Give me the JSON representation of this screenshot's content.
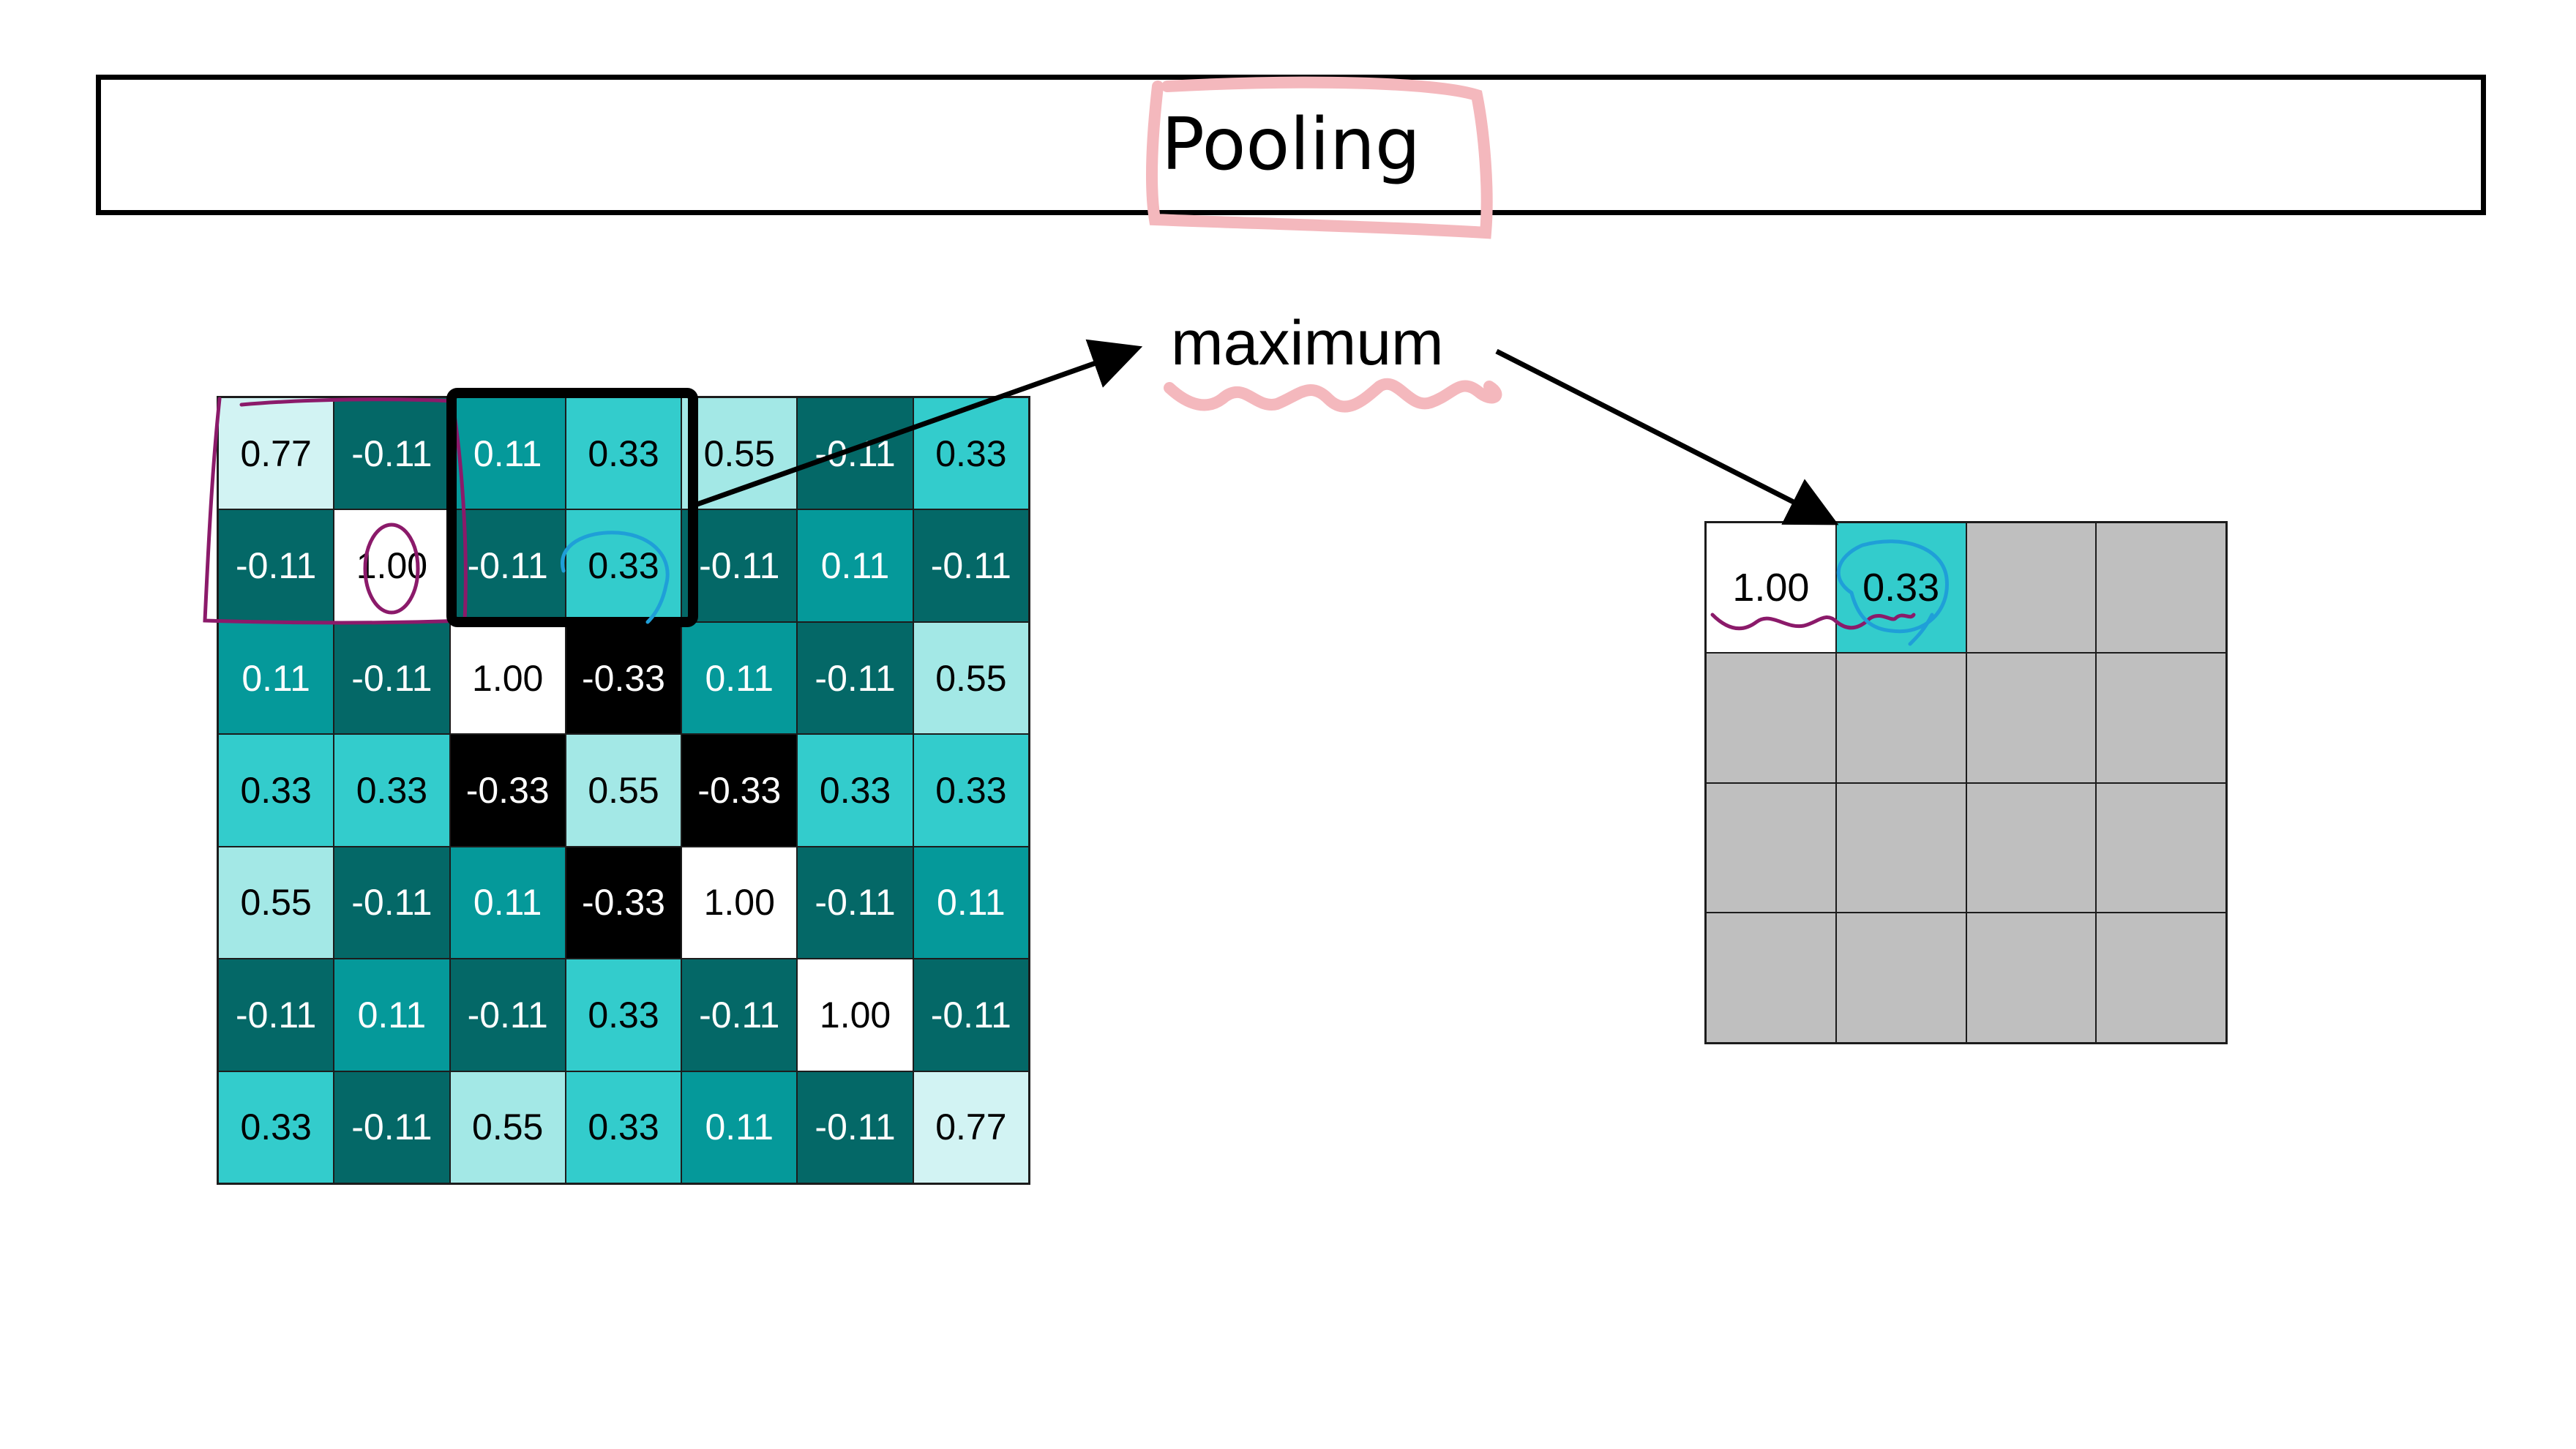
{
  "title": "Pooling",
  "operation_label": "maximum",
  "input_grid": [
    [
      "0.77",
      "-0.11",
      "0.11",
      "0.33",
      "0.55",
      "-0.11",
      "0.33"
    ],
    [
      "-0.11",
      "1.00",
      "-0.11",
      "0.33",
      "-0.11",
      "0.11",
      "-0.11"
    ],
    [
      "0.11",
      "-0.11",
      "1.00",
      "-0.33",
      "0.11",
      "-0.11",
      "0.55"
    ],
    [
      "0.33",
      "0.33",
      "-0.33",
      "0.55",
      "-0.33",
      "0.33",
      "0.33"
    ],
    [
      "0.55",
      "-0.11",
      "0.11",
      "-0.33",
      "1.00",
      "-0.11",
      "0.11"
    ],
    [
      "-0.11",
      "0.11",
      "-0.11",
      "0.33",
      "-0.11",
      "1.00",
      "-0.11"
    ],
    [
      "0.33",
      "-0.11",
      "0.55",
      "0.33",
      "0.11",
      "-0.11",
      "0.77"
    ]
  ],
  "output_grid": [
    [
      "1.00",
      "0.33",
      "",
      ""
    ],
    [
      "",
      "",
      "",
      ""
    ],
    [
      "",
      "",
      "",
      ""
    ],
    [
      "",
      "",
      "",
      ""
    ]
  ],
  "colors": {
    "v1.00": "#ffffff",
    "v0.77": "#d2f3f3",
    "v0.55": "#a3e8e6",
    "v0.33": "#33cccc",
    "v0.11": "#05999a",
    "v-0.11": "#046867",
    "v-0.33": "#000000",
    "empty": "#bfbfbf",
    "annotation_pink": "#f4b8bd",
    "annotation_purple": "#8b1a6a",
    "annotation_blue": "#1f9fd8"
  }
}
